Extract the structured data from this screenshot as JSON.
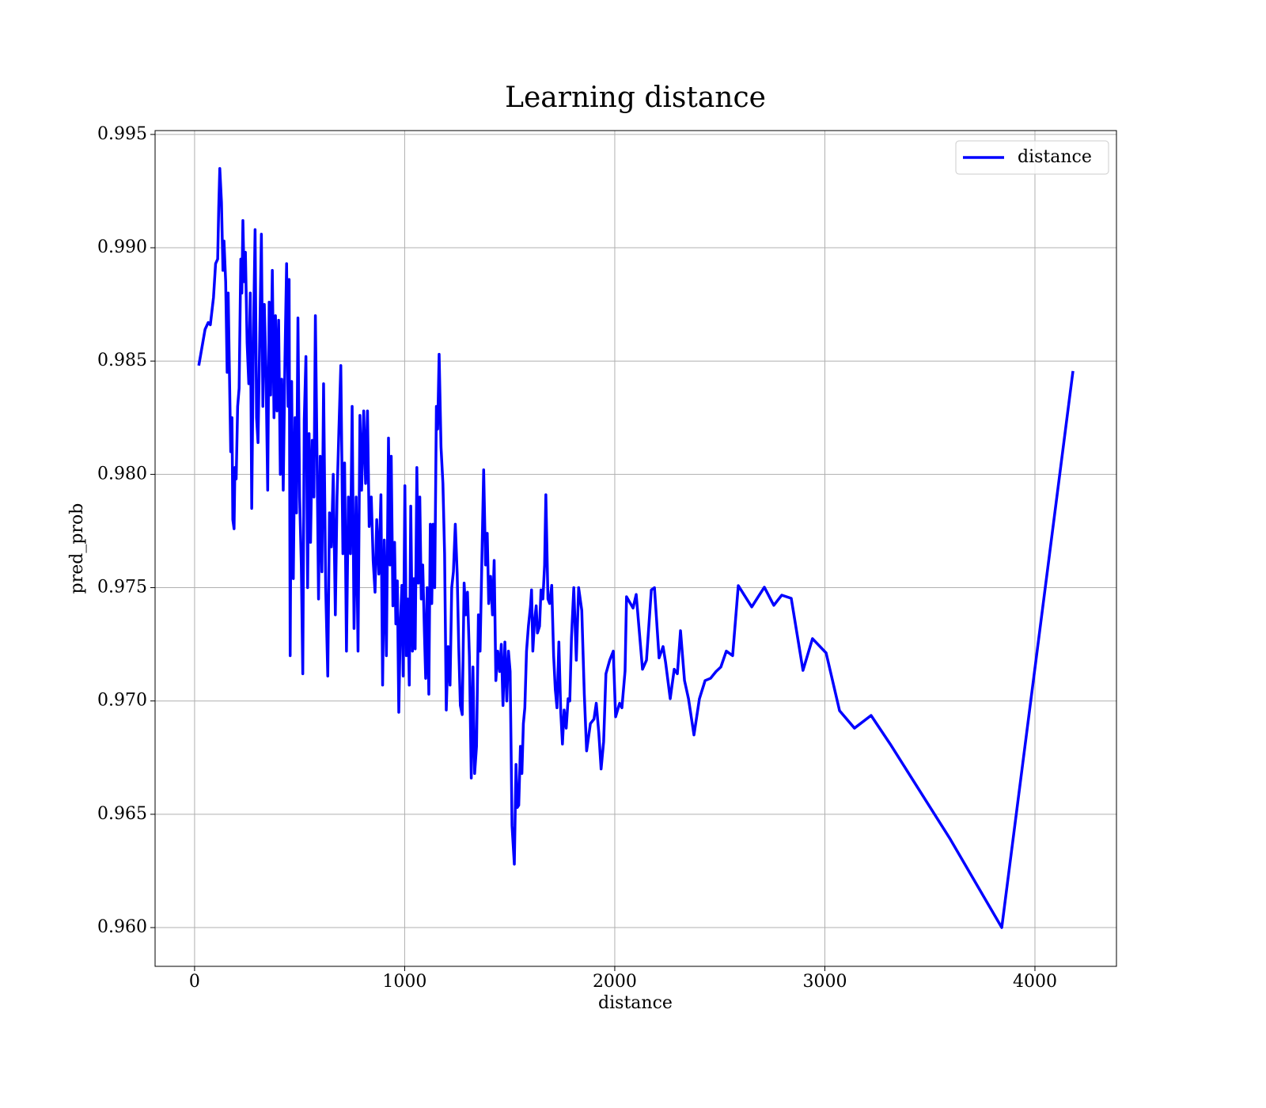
{
  "chart_data": {
    "type": "line",
    "title": "Learning distance",
    "x_label": "distance",
    "y_label": "pred_prob",
    "xlim": [
      -188,
      4388
    ],
    "ylim": [
      0.95829,
      0.99517
    ],
    "xticks": [
      0,
      1000,
      2000,
      3000,
      4000
    ],
    "yticks": [
      {
        "value": 0.96,
        "label": "0.960"
      },
      {
        "value": 0.965,
        "label": "0.965"
      },
      {
        "value": 0.97,
        "label": "0.970"
      },
      {
        "value": 0.975,
        "label": "0.975"
      },
      {
        "value": 0.98,
        "label": "0.980"
      },
      {
        "value": 0.985,
        "label": "0.985"
      },
      {
        "value": 0.99,
        "label": "0.990"
      },
      {
        "value": 0.995,
        "label": "0.995"
      }
    ],
    "grid": true,
    "legend": "upper right",
    "x": [
      20,
      50,
      65,
      75,
      90,
      100,
      110,
      115,
      120,
      128,
      135,
      140,
      148,
      155,
      160,
      165,
      172,
      178,
      182,
      188,
      192,
      198,
      205,
      212,
      220,
      225,
      230,
      236,
      242,
      250,
      258,
      265,
      272,
      280,
      288,
      295,
      302,
      310,
      318,
      325,
      332,
      340,
      348,
      355,
      362,
      370,
      378,
      385,
      392,
      400,
      408,
      415,
      422,
      430,
      438,
      445,
      450,
      455,
      462,
      470,
      478,
      485,
      492,
      500,
      508,
      515,
      522,
      530,
      538,
      545,
      552,
      560,
      568,
      575,
      582,
      590,
      598,
      606,
      614,
      624,
      634,
      642,
      651,
      660,
      670,
      678,
      687,
      696,
      706,
      714,
      723,
      732,
      742,
      750,
      759,
      769,
      778,
      787,
      795,
      805,
      814,
      823,
      831,
      841,
      850,
      859,
      867,
      877,
      887,
      895,
      903,
      913,
      923,
      930,
      936,
      944,
      952,
      958,
      965,
      972,
      980,
      987,
      993,
      1001,
      1008,
      1015,
      1022,
      1029,
      1037,
      1044,
      1050,
      1058,
      1065,
      1072,
      1079,
      1086,
      1094,
      1100,
      1107,
      1115,
      1122,
      1129,
      1135,
      1143,
      1151,
      1157,
      1164,
      1173,
      1182,
      1190,
      1198,
      1207,
      1216,
      1224,
      1232,
      1241,
      1250,
      1257,
      1265,
      1274,
      1283,
      1291,
      1299,
      1308,
      1317,
      1325,
      1333,
      1342,
      1351,
      1359,
      1367,
      1376,
      1385,
      1393,
      1400,
      1409,
      1418,
      1426,
      1434,
      1443,
      1452,
      1460,
      1468,
      1477,
      1486,
      1494,
      1502,
      1511,
      1522,
      1530,
      1536,
      1543,
      1551,
      1558,
      1565,
      1572,
      1580,
      1589,
      1599,
      1604,
      1610,
      1618,
      1626,
      1632,
      1642,
      1649,
      1658,
      1666,
      1672,
      1682,
      1690,
      1700,
      1709,
      1717,
      1725,
      1734,
      1743,
      1751,
      1759,
      1769,
      1778,
      1786,
      1794,
      1805,
      1817,
      1828,
      1843,
      1855,
      1866,
      1884,
      1901,
      1912,
      1924,
      1935,
      1947,
      1958,
      1976,
      1993,
      2004,
      2023,
      2034,
      2049,
      2056,
      2087,
      2102,
      2132,
      2151,
      2174,
      2189,
      2211,
      2230,
      2242,
      2264,
      2283,
      2298,
      2313,
      2332,
      2351,
      2377,
      2403,
      2430,
      2456,
      2482,
      2505,
      2531,
      2561,
      2588,
      2652,
      2712,
      2757,
      2795,
      2840,
      2896,
      2941,
      3006,
      3070,
      3141,
      3220,
      3311,
      3597,
      3842,
      4181
    ],
    "series": [
      {
        "name": "distance",
        "color": "#0000ff",
        "values": [
          0.9848,
          0.9864,
          0.9867,
          0.9866,
          0.9878,
          0.9893,
          0.9895,
          0.9918,
          0.9935,
          0.992,
          0.989,
          0.9903,
          0.9885,
          0.9845,
          0.988,
          0.985,
          0.981,
          0.9825,
          0.978,
          0.9776,
          0.9803,
          0.9798,
          0.983,
          0.9838,
          0.9895,
          0.988,
          0.9912,
          0.9885,
          0.9898,
          0.9858,
          0.984,
          0.988,
          0.9785,
          0.986,
          0.9908,
          0.9825,
          0.9814,
          0.986,
          0.9906,
          0.983,
          0.9875,
          0.9845,
          0.9793,
          0.9876,
          0.9835,
          0.989,
          0.9825,
          0.987,
          0.9828,
          0.9868,
          0.98,
          0.9842,
          0.9793,
          0.985,
          0.9893,
          0.983,
          0.9886,
          0.972,
          0.9841,
          0.9754,
          0.9825,
          0.9783,
          0.9869,
          0.979,
          0.976,
          0.9712,
          0.9824,
          0.9852,
          0.975,
          0.9818,
          0.977,
          0.9815,
          0.979,
          0.987,
          0.9815,
          0.9745,
          0.9808,
          0.9757,
          0.984,
          0.975,
          0.9711,
          0.9783,
          0.9768,
          0.98,
          0.9738,
          0.979,
          0.982,
          0.9848,
          0.9765,
          0.9805,
          0.9722,
          0.979,
          0.9765,
          0.983,
          0.9732,
          0.979,
          0.9722,
          0.9826,
          0.9793,
          0.9828,
          0.9796,
          0.9828,
          0.9777,
          0.979,
          0.9762,
          0.9748,
          0.978,
          0.9756,
          0.9791,
          0.9707,
          0.9771,
          0.972,
          0.9816,
          0.976,
          0.9808,
          0.9742,
          0.977,
          0.9734,
          0.9753,
          0.9695,
          0.9736,
          0.9751,
          0.9711,
          0.9795,
          0.972,
          0.9745,
          0.9707,
          0.9786,
          0.9722,
          0.9754,
          0.9723,
          0.9803,
          0.9752,
          0.979,
          0.9745,
          0.976,
          0.973,
          0.971,
          0.975,
          0.9703,
          0.9778,
          0.9743,
          0.9778,
          0.975,
          0.983,
          0.982,
          0.9853,
          0.9812,
          0.9796,
          0.9765,
          0.9696,
          0.9724,
          0.9707,
          0.975,
          0.9757,
          0.9778,
          0.9756,
          0.9725,
          0.9698,
          0.9694,
          0.9752,
          0.9738,
          0.9748,
          0.972,
          0.9666,
          0.9715,
          0.9668,
          0.968,
          0.9738,
          0.9722,
          0.976,
          0.9802,
          0.976,
          0.9774,
          0.9743,
          0.9755,
          0.9738,
          0.9762,
          0.9709,
          0.9722,
          0.9713,
          0.9725,
          0.9698,
          0.9726,
          0.97,
          0.9722,
          0.9713,
          0.9645,
          0.9628,
          0.9672,
          0.9653,
          0.9654,
          0.968,
          0.9668,
          0.969,
          0.9697,
          0.9722,
          0.9733,
          0.9742,
          0.9749,
          0.9722,
          0.9735,
          0.9742,
          0.973,
          0.9733,
          0.9749,
          0.9745,
          0.976,
          0.9791,
          0.9745,
          0.9743,
          0.9751,
          0.972,
          0.9705,
          0.9697,
          0.9726,
          0.9695,
          0.9681,
          0.9696,
          0.9688,
          0.9701,
          0.97,
          0.9728,
          0.975,
          0.9718,
          0.975,
          0.974,
          0.9703,
          0.9678,
          0.969,
          0.9692,
          0.9699,
          0.9686,
          0.967,
          0.9682,
          0.9712,
          0.9718,
          0.9722,
          0.9693,
          0.9699,
          0.9697,
          0.97132,
          0.9746,
          0.9741,
          0.9747,
          0.9714,
          0.9718,
          0.9749,
          0.975,
          0.9719,
          0.9724,
          0.9717,
          0.9701,
          0.9714,
          0.9712,
          0.9731,
          0.9709,
          0.9701,
          0.9685,
          0.9701,
          0.9709,
          0.971,
          0.9713,
          0.9715,
          0.9722,
          0.972,
          0.97509,
          0.97415,
          0.97502,
          0.97422,
          0.97467,
          0.97453,
          0.97135,
          0.97275,
          0.97212,
          0.96957,
          0.9688,
          0.96936,
          0.9681,
          0.9639,
          0.96,
          0.98456
        ]
      }
    ]
  }
}
